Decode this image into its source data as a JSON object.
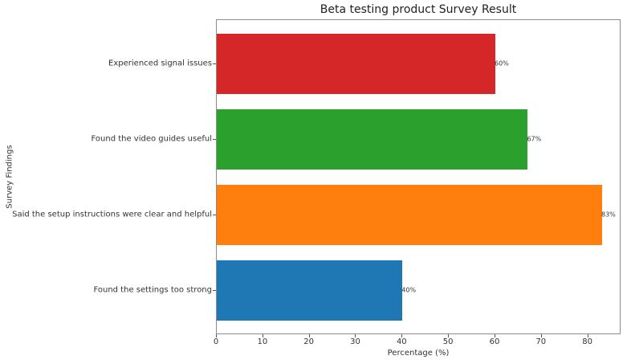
{
  "chart_data": {
    "type": "bar",
    "orientation": "horizontal",
    "title": "Beta testing product Survey Result",
    "xlabel": "Percentage (%)",
    "ylabel": "Survey Findings",
    "categories": [
      "Found the settings too strong",
      "Said the setup instructions were clear and helpful",
      "Found the video guides useful",
      "Experienced signal issues"
    ],
    "values": [
      40,
      83,
      67,
      60
    ],
    "value_labels": [
      "40%",
      "83%",
      "67%",
      "60%"
    ],
    "colors": [
      "#1f77b4",
      "#ff7f0e",
      "#2ca02c",
      "#d62728"
    ],
    "xlim": [
      0,
      87.15
    ],
    "xticks": [
      0,
      10,
      20,
      30,
      40,
      50,
      60,
      70,
      80
    ],
    "grid": false,
    "legend": null
  },
  "labels": {
    "title": "Beta testing product Survey Result",
    "xlabel": "Percentage (%)",
    "ylabel": "Survey Findings"
  }
}
